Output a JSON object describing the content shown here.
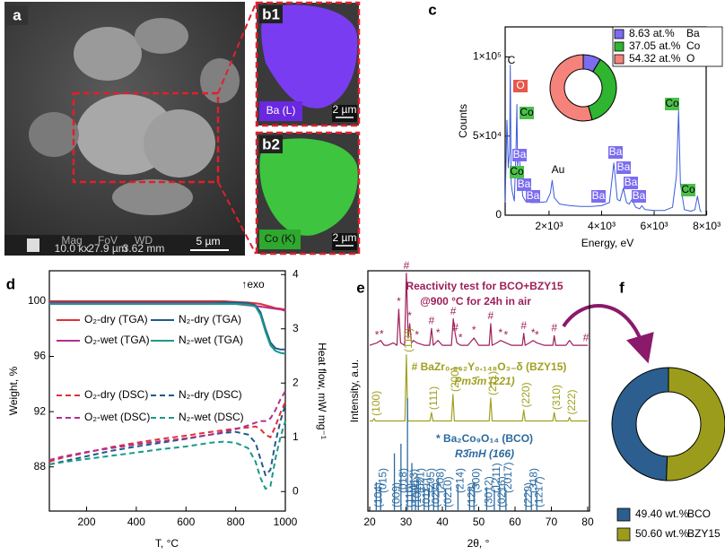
{
  "images": [
    {
      "label": "a",
      "info": [
        "Mag",
        "10.0 kx",
        "FoV",
        "27.9 µm",
        "WD",
        "3.62 mm"
      ],
      "scale_bar": "5 µm"
    },
    {
      "label": "b1",
      "element": "Ba (L)",
      "scale_bar": "2 µm"
    },
    {
      "label": "b2",
      "element": "Co (K)",
      "scale_bar": "2 µm"
    }
  ],
  "chart_data": [
    {
      "type": "line",
      "label": "c",
      "xlabel": "Energy, eV",
      "ylabel": "Counts",
      "xlim": [
        330,
        7980
      ],
      "ylim": [
        0,
        119000
      ],
      "xticks": [
        {
          "value": 2000,
          "label": "2×10³"
        },
        {
          "value": 4000,
          "label": "4×10³"
        },
        {
          "value": 6000,
          "label": "6×10³"
        },
        {
          "value": 8000,
          "label": "8×10³"
        }
      ],
      "yticks": [
        0,
        {
          "value": 50000,
          "label": "5×10⁴"
        },
        {
          "value": 100000,
          "label": "1×10⁵"
        }
      ],
      "series": [
        {
          "color": "#3b5bdb",
          "x": [
            330,
            400,
            450,
            500,
            525,
            560,
            600,
            680,
            740,
            776,
            800,
            850,
            930,
            1000,
            1100,
            1300,
            1600,
            1900,
            2050,
            2120,
            2200,
            2400,
            2800,
            3200,
            3600,
            4000,
            4300,
            4466,
            4600,
            4700,
            4828,
            4950,
            5050,
            5156,
            5300,
            5450,
            5531,
            5650,
            6000,
            6400,
            6700,
            6850,
            6930,
            7000,
            7150,
            7400,
            7550,
            7649,
            7750,
            7800
          ],
          "values": [
            8000,
            60000,
            30000,
            40000,
            95000,
            20000,
            15000,
            9000,
            40000,
            70000,
            30000,
            40000,
            25000,
            12000,
            9000,
            8000,
            8000,
            8500,
            14000,
            22000,
            11000,
            7000,
            6000,
            5500,
            5500,
            6000,
            8000,
            33000,
            10000,
            9000,
            17000,
            8000,
            7000,
            10000,
            5000,
            4000,
            6000,
            3500,
            3000,
            3000,
            5000,
            25000,
            66000,
            20000,
            3500,
            2500,
            3500,
            12000,
            3000,
            2000
          ]
        }
      ],
      "annotations": [
        {
          "text": "C"
        },
        {
          "text": "O",
          "color": "#e8584a"
        },
        {
          "text": "Co",
          "color": "#4cbf4c"
        },
        {
          "text": "Ba",
          "color": "#7b6cf0"
        },
        {
          "text": "Co",
          "color": "#4cbf4c"
        },
        {
          "text": "Ba",
          "color": "#7b6cf0"
        },
        {
          "text": "Ba",
          "color": "#7b6cf0"
        },
        {
          "text": "Au"
        },
        {
          "text": "Ba",
          "color": "#7b6cf0"
        },
        {
          "text": "Ba",
          "color": "#7b6cf0"
        },
        {
          "text": "Ba",
          "color": "#7b6cf0"
        },
        {
          "text": "Ba",
          "color": "#7b6cf0"
        },
        {
          "text": "Ba",
          "color": "#7b6cf0"
        },
        {
          "text": "Co",
          "color": "#4cbf4c"
        },
        {
          "text": "Co",
          "color": "#4cbf4c"
        }
      ]
    },
    {
      "type": "donut",
      "categories": [
        "Ba",
        "Co",
        "O"
      ],
      "values": [
        8.63,
        37.05,
        54.32
      ],
      "value_labels": [
        "8.63 at.%",
        "37.05 at.%",
        "54.32 at.%"
      ],
      "colors": [
        "#7b6cf0",
        "#2fb52f",
        "#f6837b"
      ]
    },
    {
      "type": "line",
      "label": "d",
      "xlabel": "T, °C",
      "ylabel": "Weight, %",
      "y2label": "Heat flow, mW mg⁻¹",
      "annotation": "↑exo",
      "xlim": [
        50,
        1000
      ],
      "ylim": [
        84.8,
        102.2
      ],
      "y2lim": [
        -0.36,
        4.07
      ],
      "xticks": [
        200,
        400,
        600,
        800,
        1000
      ],
      "yticks": [
        88,
        92,
        96,
        100
      ],
      "y2ticks": [
        0,
        1,
        2,
        3,
        4
      ],
      "x": [
        50,
        100,
        200,
        300,
        400,
        500,
        600,
        700,
        750,
        800,
        850,
        880,
        900,
        920,
        940,
        960,
        980,
        1000
      ],
      "series": [
        {
          "name": "O₂-dry (TGA)",
          "color": "#e0303a",
          "values": [
            100,
            100,
            100,
            100,
            100,
            100,
            100,
            100,
            100,
            99.95,
            99.9,
            99.85,
            99.8,
            99.7,
            99.6,
            99.5,
            99.45,
            99.4
          ]
        },
        {
          "name": "N₂-dry (TGA)",
          "color": "#1f5a8c",
          "values": [
            99.9,
            99.9,
            99.9,
            99.9,
            99.9,
            99.9,
            99.9,
            99.9,
            99.9,
            99.9,
            99.85,
            99.7,
            99.2,
            98.0,
            97.0,
            96.6,
            96.5,
            96.5
          ]
        },
        {
          "name": "O₂-wet (TGA)",
          "color": "#b0308e",
          "values": [
            99.85,
            99.85,
            99.85,
            99.85,
            99.85,
            99.85,
            99.85,
            99.85,
            99.8,
            99.8,
            99.7,
            99.65,
            99.6,
            99.55,
            99.5,
            99.45,
            99.4,
            99.3
          ]
        },
        {
          "name": "N₂-wet (TGA)",
          "color": "#1a9a88",
          "values": [
            99.8,
            99.8,
            99.8,
            99.8,
            99.8,
            99.8,
            99.8,
            99.8,
            99.8,
            99.8,
            99.75,
            99.6,
            99.0,
            97.8,
            96.8,
            96.4,
            96.25,
            96.2
          ]
        },
        {
          "name": "O₂-dry (DSC)",
          "color": "#e0303a",
          "axis": "y2",
          "dash": true,
          "values": [
            0.55,
            0.62,
            0.72,
            0.82,
            0.9,
            0.97,
            1.03,
            1.1,
            1.13,
            1.16,
            1.18,
            1.2,
            1.15,
            1.05,
            1.0,
            1.2,
            1.45,
            1.65
          ]
        },
        {
          "name": "N₂-dry (DSC)",
          "color": "#1f5a8c",
          "axis": "y2",
          "dash": true,
          "values": [
            0.5,
            0.55,
            0.65,
            0.75,
            0.83,
            0.9,
            0.97,
            1.05,
            1.08,
            1.1,
            1.05,
            0.9,
            0.6,
            0.3,
            0.4,
            0.9,
            1.3,
            1.6
          ]
        },
        {
          "name": "O₂-wet (DSC)",
          "color": "#b0308e",
          "axis": "y2",
          "dash": true,
          "values": [
            0.58,
            0.64,
            0.73,
            0.8,
            0.87,
            0.93,
            0.98,
            1.05,
            1.1,
            1.15,
            1.22,
            1.27,
            1.3,
            1.3,
            1.35,
            1.5,
            1.7,
            1.85
          ]
        },
        {
          "name": "N₂-wet (DSC)",
          "color": "#1a9a88",
          "axis": "y2",
          "dash": true,
          "values": [
            0.5,
            0.54,
            0.6,
            0.66,
            0.72,
            0.78,
            0.83,
            0.9,
            0.92,
            0.9,
            0.8,
            0.55,
            0.25,
            0.05,
            0.1,
            0.6,
            1.0,
            1.3
          ]
        }
      ]
    },
    {
      "type": "line",
      "label": "e",
      "xlabel": "2θ, °",
      "ylabel": "Intensity, a.u.",
      "xlim": [
        19.5,
        80.5
      ],
      "ylim": [
        0,
        100
      ],
      "xticks": [
        20,
        30,
        40,
        50,
        60,
        70,
        80
      ],
      "annotations": [
        "Reactivity test for BCO+BZY15",
        "@900 °C for 24h in air",
        "# BaZr₀.₈₅₂Y₀.₁₄₈O₃₋δ (BZY15)",
        "Pm3̄m (221)",
        "* Ba₂Co₉O₁₄ (BCO)",
        "R3̄mH (166)"
      ],
      "series": [
        {
          "color": "#9e1f5a",
          "x": [
            20,
            22,
            23,
            24,
            25,
            26.5,
            27.5,
            28,
            28.5,
            29.6,
            30.1,
            30.6,
            31,
            31.5,
            32,
            33,
            35,
            36.5,
            37,
            37.5,
            38.8,
            40,
            42.5,
            43,
            43.5,
            44,
            45,
            47,
            48.7,
            50,
            52.9,
            53.3,
            53.7,
            55,
            56,
            57.5,
            59,
            62,
            62.4,
            62.8,
            64,
            65,
            66,
            68,
            70.4,
            70.8,
            71.2,
            74,
            75,
            76,
            80
          ],
          "values": [
            69,
            70,
            71,
            69,
            69,
            70,
            69,
            84,
            70,
            69,
            99,
            72,
            78,
            70,
            71,
            70,
            69,
            69,
            76,
            69,
            71,
            69,
            69,
            80,
            74,
            70,
            69,
            69,
            72,
            69,
            69,
            78,
            69,
            70,
            71,
            70,
            69,
            69,
            74,
            69,
            70,
            71,
            70,
            69,
            69,
            73,
            69,
            69,
            71,
            69,
            69
          ],
          "markers": [
            {
              "x": 22,
              "label": "*"
            },
            {
              "x": 23.3,
              "label": "*"
            },
            {
              "x": 28,
              "label": "*"
            },
            {
              "x": 30.1,
              "label": "#"
            },
            {
              "x": 31,
              "label": "*"
            },
            {
              "x": 33,
              "label": "*"
            },
            {
              "x": 37,
              "label": "#"
            },
            {
              "x": 38.8,
              "label": "*"
            },
            {
              "x": 43,
              "label": "#"
            },
            {
              "x": 43.6,
              "label": "#"
            },
            {
              "x": 45,
              "label": "*"
            },
            {
              "x": 48.7,
              "label": "*"
            },
            {
              "x": 53.3,
              "label": "#"
            },
            {
              "x": 56,
              "label": "*"
            },
            {
              "x": 57.5,
              "label": "*"
            },
            {
              "x": 62.4,
              "label": "#"
            },
            {
              "x": 65,
              "label": "*"
            },
            {
              "x": 66,
              "label": "*"
            },
            {
              "x": 70.8,
              "label": "#"
            },
            {
              "x": 79.5,
              "label": "#"
            }
          ]
        },
        {
          "color": "#a0a020",
          "x": [
            20,
            20.8,
            21.2,
            21.6,
            29.7,
            30.1,
            30.5,
            36.6,
            37,
            37.4,
            42.5,
            42.9,
            43.3,
            52.9,
            53.3,
            53.7,
            62,
            62.4,
            62.8,
            70.4,
            70.8,
            71.2,
            74.6,
            75,
            75.4,
            80
          ],
          "values": [
            37.5,
            37.5,
            38.5,
            37.5,
            37.5,
            65,
            37.5,
            37.5,
            41,
            37.5,
            37.5,
            48.5,
            37.5,
            37.5,
            47,
            37.5,
            37.5,
            42,
            37.5,
            37.5,
            41,
            37.5,
            37.5,
            39,
            37.5,
            37.5
          ],
          "peaks": [
            {
              "x": 21.2,
              "label": "(100)"
            },
            {
              "x": 30.1,
              "label": "(110)"
            },
            {
              "x": 37,
              "label": "(111)"
            },
            {
              "x": 42.9,
              "label": "(200)"
            },
            {
              "x": 53.3,
              "label": "(211)"
            },
            {
              "x": 62.4,
              "label": "(220)"
            },
            {
              "x": 70.8,
              "label": "(310)"
            },
            {
              "x": 75,
              "label": "(222)"
            }
          ]
        },
        {
          "color": "#2b6aa0",
          "kind": "stick",
          "x": [
            21.8,
            23,
            26.8,
            28.6,
            30.4,
            31.6,
            32.6,
            33.4,
            35,
            36.2,
            37.6,
            38.8,
            40.9,
            44.3,
            47.5,
            48.7,
            52.2,
            54.3,
            55.8,
            57.5,
            63,
            64.5,
            66
          ],
          "values": [
            12,
            10,
            24,
            28,
            47,
            20,
            10,
            13,
            10,
            9,
            11,
            14,
            9,
            11,
            10,
            12,
            10,
            9,
            10,
            9,
            9,
            8,
            8
          ],
          "labels": [
            "(104)",
            "(015)",
            "(009)",
            "(018)",
            "(110)",
            "(113)",
            "(1010)",
            "(021)",
            "(0111)",
            "(205)",
            "(027)",
            "(208)",
            "(0210)",
            "(214)",
            "(128)",
            "(300)",
            "(3012)",
            "(1211)",
            "(0216)",
            "(2017)",
            "(229)",
            "(318)",
            "(1217)"
          ]
        }
      ]
    },
    {
      "type": "donut",
      "label": "f",
      "categories": [
        "BCO",
        "BZY15"
      ],
      "values": [
        49.4,
        50.6
      ],
      "value_labels": [
        "49.40 wt.%",
        "50.60 wt.%"
      ],
      "colors": [
        "#2c5f8f",
        "#9c9c1c"
      ]
    }
  ]
}
